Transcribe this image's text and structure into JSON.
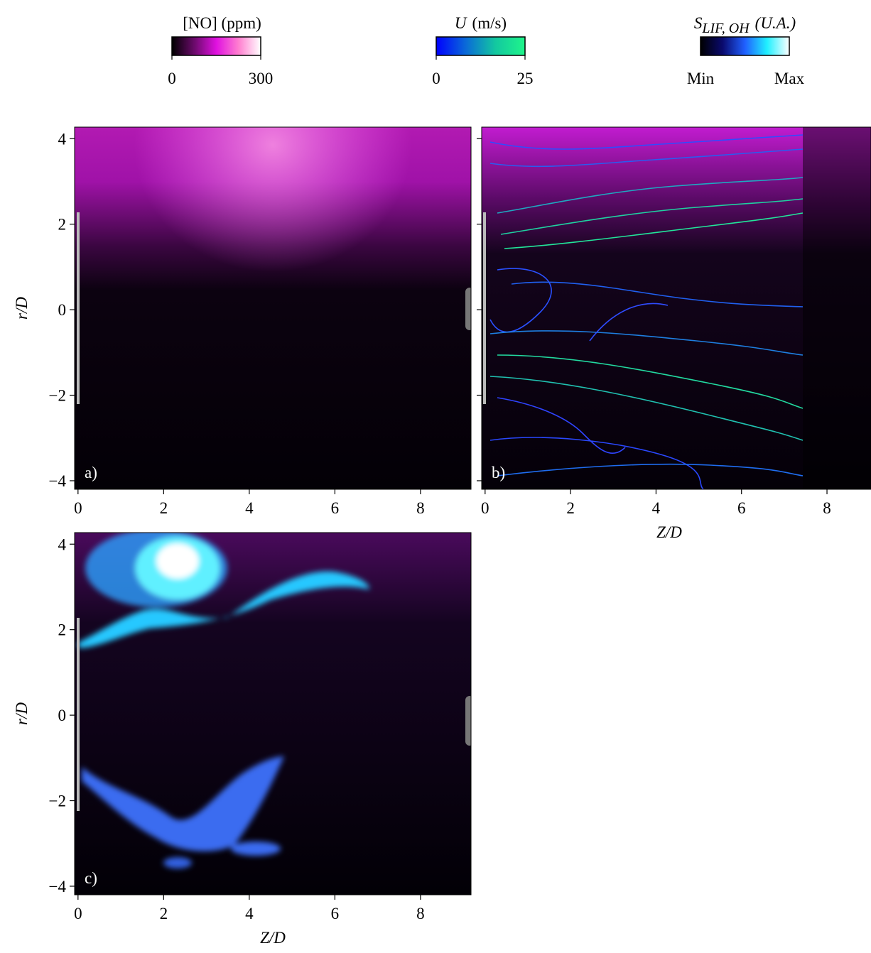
{
  "chart_data": [
    {
      "type": "colorbar",
      "title": "[NO] (ppm)",
      "colors": [
        "#000000",
        "#6a0a6a",
        "#e011e0",
        "#ff7fd0",
        "#ffffff"
      ],
      "clim": [
        0,
        300
      ],
      "cticks": [
        0,
        300
      ]
    },
    {
      "type": "colorbar",
      "title_symbol": "U",
      "title": "(m/s)",
      "colors": [
        "#0000ff",
        "#0a6ad8",
        "#13c8a0",
        "#1ff58a"
      ],
      "clim": [
        0,
        25
      ],
      "cticks": [
        0,
        25
      ]
    },
    {
      "type": "colorbar",
      "title_symbol": "S",
      "title_sub": "LIF, OH",
      "title": "(U.A.)",
      "colors": [
        "#000000",
        "#0a0a6e",
        "#2060ff",
        "#20f0ff",
        "#ffffff"
      ],
      "tick_labels": [
        "Min",
        "Max"
      ]
    },
    {
      "type": "image",
      "panel_label": "a)",
      "xlim": [
        -0.08,
        9.18
      ],
      "ylim": [
        -4.2,
        4.27
      ],
      "xticks": [
        0,
        2,
        4,
        6,
        8
      ],
      "yticks": [
        {
          "value": -4,
          "label": "−4"
        },
        {
          "value": -2,
          "label": "−2"
        },
        0,
        2,
        4
      ],
      "show_ytick_labels": true,
      "ylabel": "r/D"
    },
    {
      "type": "image",
      "panel_label": "b)",
      "xlim": [
        -0.08,
        9.03
      ],
      "ylim": [
        -4.2,
        4.27
      ],
      "xticks": [
        0,
        2,
        4,
        6,
        8
      ],
      "yticks": [
        {
          "value": -4,
          "label": "−4"
        },
        {
          "value": -2,
          "label": "−2"
        },
        0,
        2,
        4
      ],
      "show_ytick_labels": false,
      "xlabel": "Z/D"
    },
    {
      "type": "image",
      "panel_label": "c)",
      "xlim": [
        -0.08,
        9.18
      ],
      "ylim": [
        -4.2,
        4.27
      ],
      "xticks": [
        0,
        2,
        4,
        6,
        8
      ],
      "yticks": [
        {
          "value": -4,
          "label": "−4"
        },
        {
          "value": -2,
          "label": "−2"
        },
        0,
        2,
        4
      ],
      "show_ytick_labels": true,
      "xlabel": "Z/D",
      "ylabel": "r/D"
    }
  ]
}
